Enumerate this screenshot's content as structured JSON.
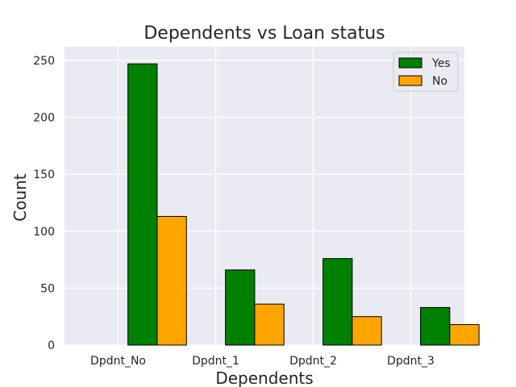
{
  "chart_data": {
    "type": "bar",
    "title": "Dependents vs Loan status",
    "xlabel": "Dependents",
    "ylabel": "Count",
    "categories": [
      "Dpdnt_No",
      "Dpdnt_1",
      "Dpdnt_2",
      "Dpdnt_3"
    ],
    "series": [
      {
        "name": "Yes",
        "values": [
          247,
          66,
          76,
          33
        ],
        "color": "#008000"
      },
      {
        "name": "No",
        "values": [
          113,
          36,
          25,
          18
        ],
        "color": "#FFA500"
      }
    ],
    "ylim": [
      0,
      262
    ],
    "yticks": [
      0,
      50,
      100,
      150,
      200,
      250
    ],
    "grid": true,
    "legend": "top-right",
    "background": "#EAEAF2"
  }
}
